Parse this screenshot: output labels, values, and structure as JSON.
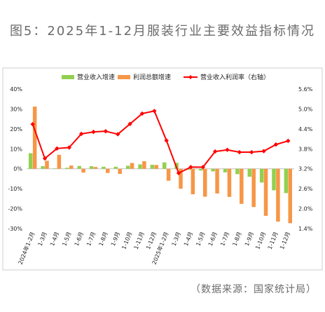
{
  "title": "图5：2025年1-12月服装行业主要效益指标情况",
  "source_note": "（数据来源：国家统计局）",
  "colors": {
    "revenue_growth": "#92d050",
    "profit_growth": "#f79646",
    "margin": "#ff0000"
  },
  "chart_data": {
    "type": "bar",
    "categories": [
      "2024年1-2月",
      "1-3月",
      "1-4月",
      "1-5月",
      "1-6月",
      "1-7月",
      "1-8月",
      "1-9月",
      "1-10月",
      "1-11月",
      "1-12月",
      "2025年1-2月",
      "1-3月",
      "1-4月",
      "1-5月",
      "1-6月",
      "1-7月",
      "1-8月",
      "1-9月",
      "1-10月",
      "1-11月",
      "1-12月"
    ],
    "series": [
      {
        "name": "营业收入增速",
        "kind": "bar",
        "axis": "left",
        "values": [
          7.8,
          1.3,
          0.2,
          0.5,
          1.4,
          1.3,
          1.0,
          1.0,
          1.5,
          2.2,
          2.0,
          3.2,
          3.0,
          -0.5,
          -0.9,
          -1.3,
          -1.8,
          -2.7,
          -4.0,
          -6.9,
          -10.8,
          -12.2
        ]
      },
      {
        "name": "利润总额增速",
        "kind": "bar",
        "axis": "left",
        "values": [
          31.2,
          4.0,
          7.0,
          1.6,
          -1.9,
          0.9,
          -2.1,
          -2.6,
          2.9,
          3.8,
          1.9,
          -6.0,
          -10.0,
          -12.8,
          -14.0,
          -12.4,
          -14.1,
          -17.6,
          -19.2,
          -23.6,
          -26.5,
          -27.3
        ]
      },
      {
        "name": "营业收入利润率（右轴）",
        "kind": "line",
        "axis": "right",
        "values": [
          4.54,
          3.51,
          3.81,
          3.84,
          4.25,
          4.31,
          4.33,
          4.24,
          4.55,
          4.86,
          4.94,
          4.05,
          3.07,
          3.25,
          3.25,
          3.72,
          3.77,
          3.7,
          3.7,
          3.73,
          3.93,
          4.04
        ]
      }
    ],
    "legend": [
      "营业收入增速",
      "利润总额增速",
      "营业收入利润率（右轴）"
    ],
    "legend_position": "top",
    "y_left": {
      "min": -30,
      "max": 40,
      "step": 10,
      "ticks": [
        "40%",
        "30%",
        "20%",
        "10%",
        "0%",
        "-10%",
        "-20%",
        "-30%"
      ]
    },
    "y_right": {
      "min": 1.4,
      "max": 5.6,
      "step": 0.6,
      "ticks": [
        "5.6%",
        "5.0%",
        "4.4%",
        "3.8%",
        "3.2%",
        "2.6%",
        "2.0%",
        "1.4%"
      ]
    },
    "grid": false
  }
}
